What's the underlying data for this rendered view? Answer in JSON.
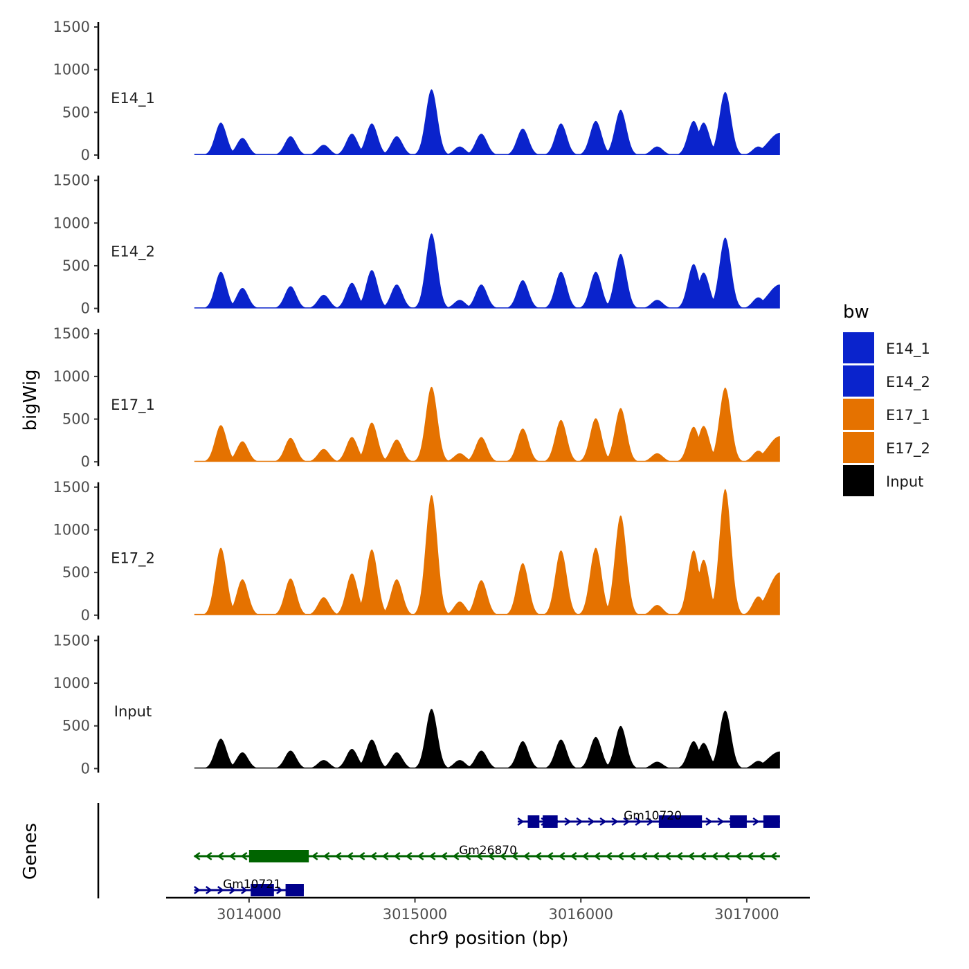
{
  "chart_data": {
    "type": "area",
    "xlabel": "chr9 position (bp)",
    "ylabel": "bigWig",
    "genes_label": "Genes",
    "xlim": [
      3013500,
      3017380
    ],
    "x_range_data": [
      3013670,
      3017200
    ],
    "x_ticks": [
      3014000,
      3015000,
      3016000,
      3017000
    ],
    "x_tick_labels": [
      "3014000",
      "3015000",
      "3016000",
      "3017000"
    ],
    "ylim": [
      0,
      1500
    ],
    "y_ticks": [
      0,
      500,
      1000,
      1500
    ],
    "y_tick_labels": [
      "0",
      "500",
      "1000",
      "1500"
    ],
    "legend": {
      "title": "bw",
      "position": "right",
      "entries": [
        {
          "label": "E14_1",
          "color": "#0a23cc"
        },
        {
          "label": "E14_2",
          "color": "#0a23cc"
        },
        {
          "label": "E17_1",
          "color": "#e57200"
        },
        {
          "label": "E17_2",
          "color": "#e57200"
        },
        {
          "label": "Input",
          "color": "#000000"
        }
      ]
    },
    "tracks": [
      {
        "name": "E14_1",
        "color": "#0a23cc",
        "peaks": [
          [
            3013830,
            380
          ],
          [
            3013960,
            200
          ],
          [
            3014250,
            220
          ],
          [
            3014450,
            120
          ],
          [
            3014620,
            250
          ],
          [
            3014740,
            370
          ],
          [
            3014890,
            220
          ],
          [
            3015100,
            770
          ],
          [
            3015270,
            100
          ],
          [
            3015400,
            250
          ],
          [
            3015650,
            310
          ],
          [
            3015880,
            370
          ],
          [
            3016090,
            400
          ],
          [
            3016240,
            530
          ],
          [
            3016460,
            100
          ],
          [
            3016680,
            400
          ],
          [
            3016740,
            380
          ],
          [
            3016870,
            740
          ],
          [
            3017070,
            100
          ]
        ],
        "baseline": 40,
        "end_value": 260
      },
      {
        "name": "E14_2",
        "color": "#0a23cc",
        "peaks": [
          [
            3013830,
            430
          ],
          [
            3013960,
            240
          ],
          [
            3014250,
            260
          ],
          [
            3014450,
            160
          ],
          [
            3014620,
            300
          ],
          [
            3014740,
            450
          ],
          [
            3014890,
            280
          ],
          [
            3015100,
            880
          ],
          [
            3015270,
            100
          ],
          [
            3015400,
            280
          ],
          [
            3015650,
            330
          ],
          [
            3015880,
            430
          ],
          [
            3016090,
            430
          ],
          [
            3016240,
            640
          ],
          [
            3016460,
            100
          ],
          [
            3016680,
            520
          ],
          [
            3016740,
            420
          ],
          [
            3016870,
            830
          ],
          [
            3017070,
            130
          ]
        ],
        "baseline": 40,
        "end_value": 280
      },
      {
        "name": "E17_1",
        "color": "#e57200",
        "peaks": [
          [
            3013830,
            430
          ],
          [
            3013960,
            240
          ],
          [
            3014250,
            280
          ],
          [
            3014450,
            150
          ],
          [
            3014620,
            290
          ],
          [
            3014740,
            460
          ],
          [
            3014890,
            260
          ],
          [
            3015100,
            880
          ],
          [
            3015270,
            100
          ],
          [
            3015400,
            290
          ],
          [
            3015650,
            390
          ],
          [
            3015880,
            490
          ],
          [
            3016090,
            510
          ],
          [
            3016240,
            630
          ],
          [
            3016460,
            100
          ],
          [
            3016680,
            410
          ],
          [
            3016740,
            420
          ],
          [
            3016870,
            870
          ],
          [
            3017070,
            130
          ]
        ],
        "baseline": 40,
        "end_value": 300
      },
      {
        "name": "E17_2",
        "color": "#e57200",
        "peaks": [
          [
            3013830,
            790
          ],
          [
            3013960,
            420
          ],
          [
            3014250,
            430
          ],
          [
            3014450,
            210
          ],
          [
            3014620,
            490
          ],
          [
            3014740,
            770
          ],
          [
            3014890,
            420
          ],
          [
            3015100,
            1410
          ],
          [
            3015270,
            160
          ],
          [
            3015400,
            410
          ],
          [
            3015650,
            610
          ],
          [
            3015880,
            760
          ],
          [
            3016090,
            790
          ],
          [
            3016240,
            1170
          ],
          [
            3016460,
            120
          ],
          [
            3016680,
            760
          ],
          [
            3016740,
            650
          ],
          [
            3016870,
            1480
          ],
          [
            3017070,
            220
          ]
        ],
        "baseline": 50,
        "end_value": 500
      },
      {
        "name": "Input",
        "color": "#000000",
        "peaks": [
          [
            3013830,
            350
          ],
          [
            3013960,
            190
          ],
          [
            3014250,
            210
          ],
          [
            3014450,
            100
          ],
          [
            3014620,
            230
          ],
          [
            3014740,
            340
          ],
          [
            3014890,
            190
          ],
          [
            3015100,
            700
          ],
          [
            3015270,
            100
          ],
          [
            3015400,
            210
          ],
          [
            3015650,
            320
          ],
          [
            3015880,
            340
          ],
          [
            3016090,
            370
          ],
          [
            3016240,
            500
          ],
          [
            3016460,
            80
          ],
          [
            3016680,
            320
          ],
          [
            3016740,
            300
          ],
          [
            3016870,
            680
          ],
          [
            3017070,
            90
          ]
        ],
        "baseline": 40,
        "end_value": 200
      }
    ],
    "genes": [
      {
        "name": "Gm10720",
        "strand": "+",
        "color": "#00008b",
        "start": 3015620,
        "end": 3017200,
        "exons": [
          [
            3015680,
            3015750
          ],
          [
            3015770,
            3015860
          ],
          [
            3016470,
            3016730
          ],
          [
            3016900,
            3017000
          ],
          [
            3017100,
            3017200
          ]
        ]
      },
      {
        "name": "Gm26870",
        "strand": "-",
        "color": "#006400",
        "start": 3013670,
        "end": 3017200,
        "exons": [
          [
            3014000,
            3014360
          ]
        ]
      },
      {
        "name": "Gm10721",
        "strand": "+",
        "color": "#00008b",
        "start": 3013670,
        "end": 3014330,
        "exons": [
          [
            3014010,
            3014150
          ],
          [
            3014220,
            3014330
          ]
        ]
      }
    ]
  }
}
